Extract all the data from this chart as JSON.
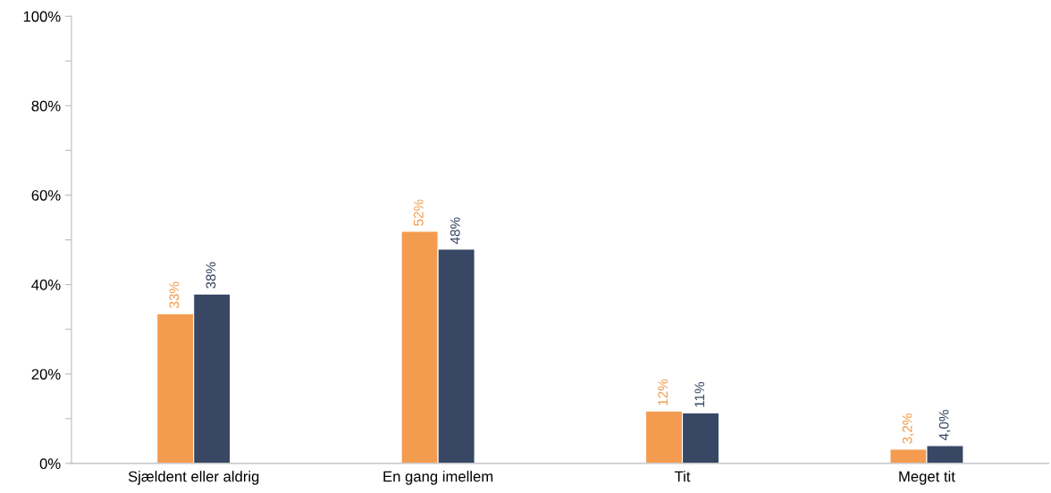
{
  "chart_data": {
    "type": "bar",
    "categories": [
      "Sjældent eller aldrig",
      "En gang imellem",
      "Tit",
      "Meget tit"
    ],
    "series": [
      {
        "color": "#f39c4f",
        "values": [
          33.5,
          51.9,
          11.7,
          3.2
        ],
        "value_labels": [
          "33%",
          "52%",
          "12%",
          "3,2%"
        ]
      },
      {
        "color": "#374764",
        "values": [
          37.9,
          47.9,
          11.3,
          4.0
        ],
        "value_labels": [
          "38%",
          "48%",
          "11%",
          "4,0%"
        ]
      }
    ],
    "ylim": [
      0,
      100
    ],
    "yticks": [
      {
        "value": 0,
        "label": "0%"
      },
      {
        "value": 10,
        "label": null
      },
      {
        "value": 20,
        "label": "20%"
      },
      {
        "value": 30,
        "label": null
      },
      {
        "value": 40,
        "label": "40%"
      },
      {
        "value": 50,
        "label": null
      },
      {
        "value": 60,
        "label": "60%"
      },
      {
        "value": 70,
        "label": null
      },
      {
        "value": 80,
        "label": "80%"
      },
      {
        "value": 90,
        "label": null
      },
      {
        "value": 100,
        "label": "100%"
      }
    ],
    "grid": false,
    "legend": false
  }
}
